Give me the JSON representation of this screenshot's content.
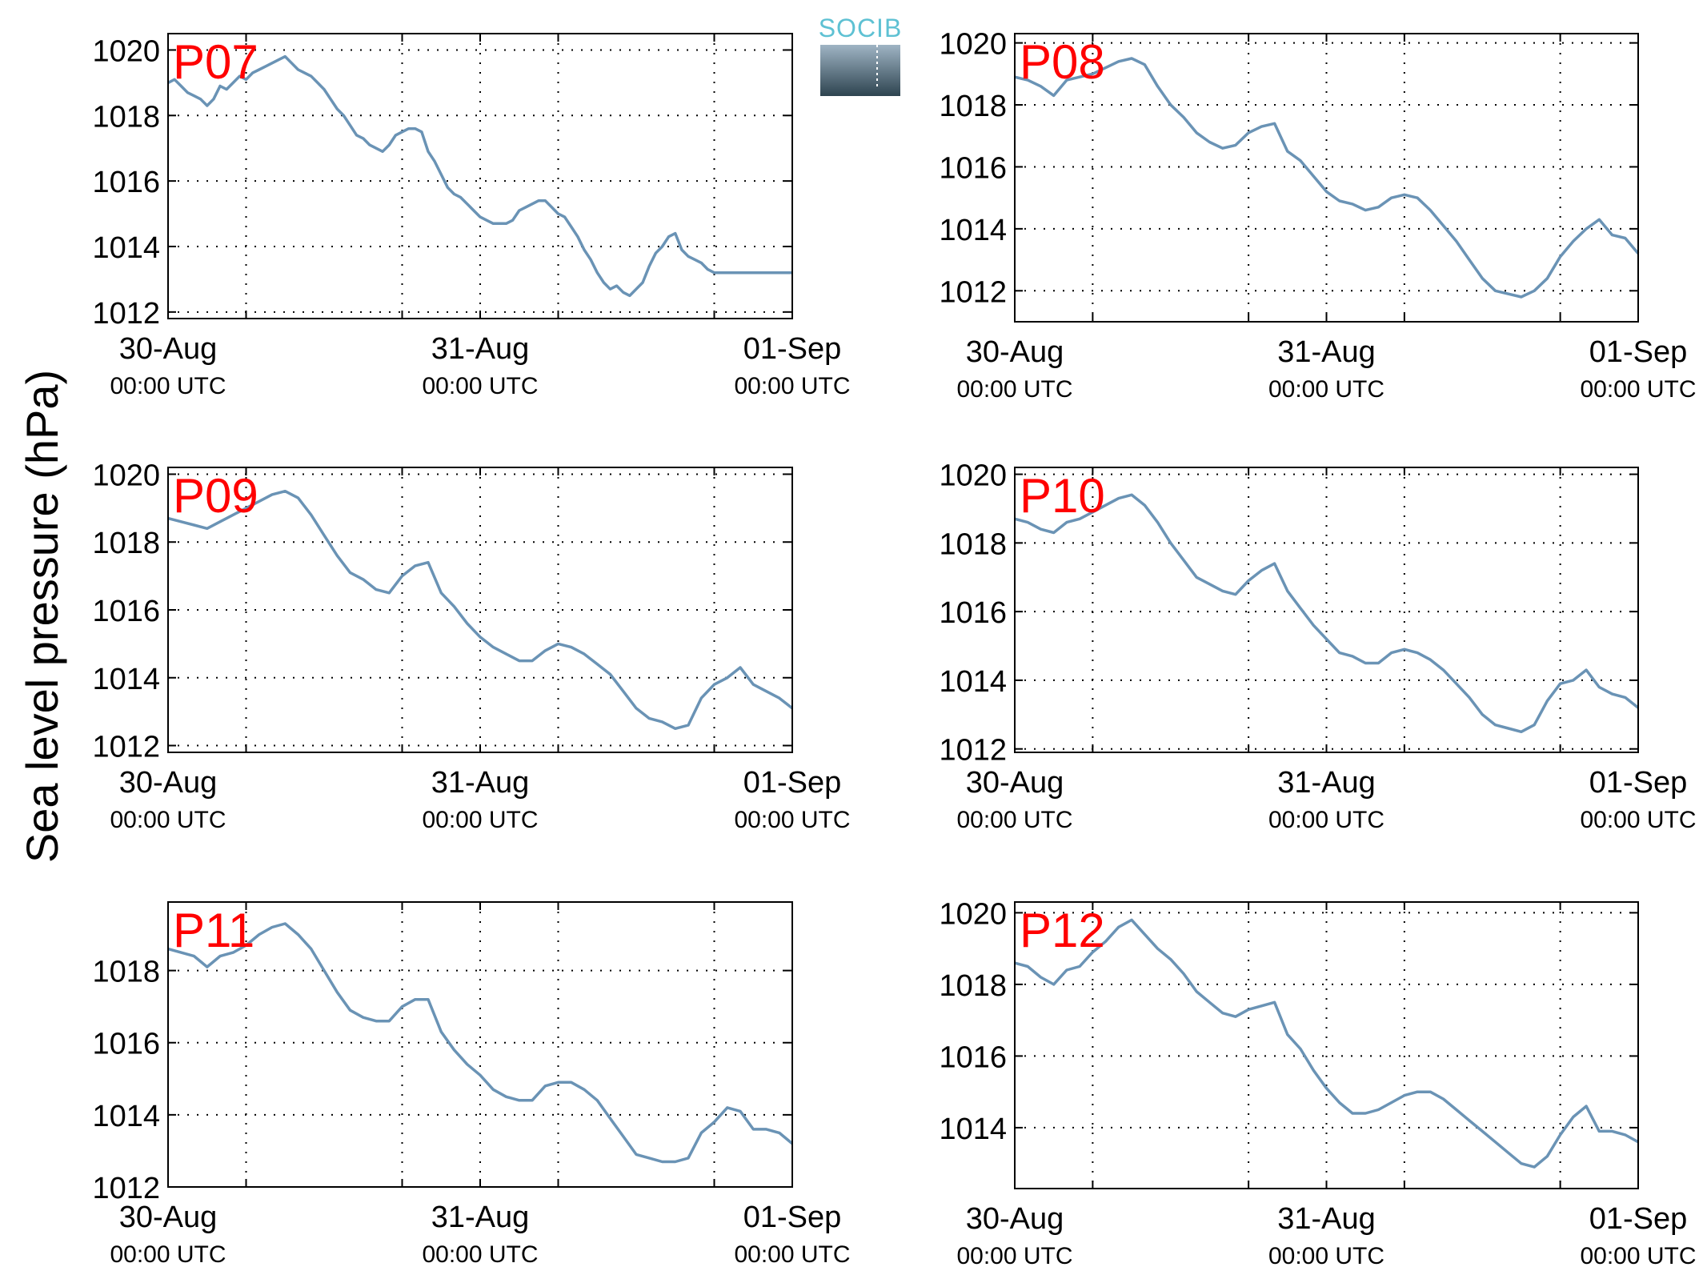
{
  "figure": {
    "ylabel": "Sea level pressure (hPa)",
    "logo_text": "SOCIB",
    "line_color": "#6a93b5",
    "label_color": "#ff0000",
    "grid": true,
    "x_ticks": [
      {
        "x": 0,
        "date": "30-Aug",
        "time": "00:00 UTC"
      },
      {
        "x": 24,
        "date": "31-Aug",
        "time": "00:00 UTC"
      },
      {
        "x": 48,
        "date": "01-Sep",
        "time": "00:00 UTC"
      }
    ],
    "x_minor_grid": [
      6,
      18,
      30,
      42
    ]
  },
  "chart_data": [
    {
      "type": "line",
      "label": "P07",
      "xlim": [
        0,
        48
      ],
      "ylim": [
        1011.8,
        1020.5
      ],
      "yticks": [
        1012,
        1014,
        1016,
        1018,
        1020
      ],
      "x": [
        0,
        0.5,
        1,
        1.5,
        2,
        2.5,
        3,
        3.5,
        4,
        4.5,
        5,
        5.5,
        6,
        6.5,
        7,
        7.5,
        8,
        8.5,
        9,
        9.5,
        10,
        10.5,
        11,
        11.5,
        12,
        12.5,
        13,
        13.5,
        14,
        14.5,
        15,
        15.5,
        16,
        16.5,
        17,
        17.5,
        18,
        18.5,
        19,
        19.5,
        20,
        20.5,
        21,
        21.5,
        22,
        22.5,
        23,
        23.5,
        24,
        24.5,
        25,
        25.5,
        26,
        26.5,
        27,
        27.5,
        28,
        28.5,
        29,
        29.5,
        30,
        30.5,
        31,
        31.5,
        32,
        32.5,
        33,
        33.5,
        34,
        34.5,
        35,
        35.5,
        36,
        36.5,
        37,
        37.5,
        38,
        38.5,
        39,
        39.5,
        40,
        40.5,
        41,
        41.5,
        42,
        42.5,
        43,
        43.5,
        44,
        44.5,
        45,
        45.5,
        46,
        46.5,
        47,
        47.5,
        48
      ],
      "y": [
        1019.0,
        1019.1,
        1018.9,
        1018.7,
        1018.6,
        1018.5,
        1018.3,
        1018.5,
        1018.9,
        1018.8,
        1019.0,
        1019.2,
        1019.1,
        1019.3,
        1019.4,
        1019.5,
        1019.6,
        1019.7,
        1019.8,
        1019.6,
        1019.4,
        1019.3,
        1019.2,
        1019.0,
        1018.8,
        1018.5,
        1018.2,
        1018.0,
        1017.7,
        1017.4,
        1017.3,
        1017.1,
        1017.0,
        1016.9,
        1017.1,
        1017.4,
        1017.5,
        1017.6,
        1017.6,
        1017.5,
        1016.9,
        1016.6,
        1016.2,
        1015.8,
        1015.6,
        1015.5,
        1015.3,
        1015.1,
        1014.9,
        1014.8,
        1014.7,
        1014.7,
        1014.7,
        1014.8,
        1015.1,
        1015.2,
        1015.3,
        1015.4,
        1015.4,
        1015.2,
        1015.0,
        1014.9,
        1014.6,
        1014.3,
        1013.9,
        1013.6,
        1013.2,
        1012.9,
        1012.7,
        1012.8,
        1012.6,
        1012.5,
        1012.7,
        1012.9,
        1013.4,
        1013.8,
        1014.0,
        1014.3,
        1014.4,
        1013.9,
        1013.7,
        1013.6,
        1013.5,
        1013.3,
        1013.2,
        1013.2,
        1013.2,
        1013.2,
        1013.2,
        1013.2,
        1013.2,
        1013.2,
        1013.2,
        1013.2,
        1013.2,
        1013.2,
        1013.2
      ]
    },
    {
      "type": "line",
      "label": "P08",
      "xlim": [
        0,
        48
      ],
      "ylim": [
        1011,
        1020.3
      ],
      "yticks": [
        1012,
        1014,
        1016,
        1018,
        1020
      ],
      "x": [
        0,
        1,
        2,
        3,
        4,
        5,
        6,
        7,
        8,
        9,
        10,
        11,
        12,
        13,
        14,
        15,
        16,
        17,
        18,
        19,
        20,
        21,
        22,
        23,
        24,
        25,
        26,
        27,
        28,
        29,
        30,
        31,
        32,
        33,
        34,
        35,
        36,
        37,
        38,
        39,
        40,
        41,
        42,
        43,
        44,
        45,
        46,
        47,
        48
      ],
      "y": [
        1018.9,
        1018.8,
        1018.6,
        1018.3,
        1018.8,
        1018.9,
        1019.0,
        1019.2,
        1019.4,
        1019.5,
        1019.3,
        1018.6,
        1018.0,
        1017.6,
        1017.1,
        1016.8,
        1016.6,
        1016.7,
        1017.1,
        1017.3,
        1017.4,
        1016.5,
        1016.2,
        1015.7,
        1015.2,
        1014.9,
        1014.8,
        1014.6,
        1014.7,
        1015.0,
        1015.1,
        1015.0,
        1014.6,
        1014.1,
        1013.6,
        1013.0,
        1012.4,
        1012.0,
        1011.9,
        1011.8,
        1012.0,
        1012.4,
        1013.1,
        1013.6,
        1014.0,
        1014.3,
        1013.8,
        1013.7,
        1013.2
      ]
    },
    {
      "type": "line",
      "label": "P09",
      "xlim": [
        0,
        48
      ],
      "ylim": [
        1011.8,
        1020.2
      ],
      "yticks": [
        1012,
        1014,
        1016,
        1018,
        1020
      ],
      "x": [
        0,
        1,
        2,
        3,
        4,
        5,
        6,
        7,
        8,
        9,
        10,
        11,
        12,
        13,
        14,
        15,
        16,
        17,
        18,
        19,
        20,
        21,
        22,
        23,
        24,
        25,
        26,
        27,
        28,
        29,
        30,
        31,
        32,
        33,
        34,
        35,
        36,
        37,
        38,
        39,
        40,
        41,
        42,
        43,
        44,
        45,
        46,
        47,
        48
      ],
      "y": [
        1018.7,
        1018.6,
        1018.5,
        1018.4,
        1018.6,
        1018.8,
        1019.0,
        1019.2,
        1019.4,
        1019.5,
        1019.3,
        1018.8,
        1018.2,
        1017.6,
        1017.1,
        1016.9,
        1016.6,
        1016.5,
        1017.0,
        1017.3,
        1017.4,
        1016.5,
        1016.1,
        1015.6,
        1015.2,
        1014.9,
        1014.7,
        1014.5,
        1014.5,
        1014.8,
        1015.0,
        1014.9,
        1014.7,
        1014.4,
        1014.1,
        1013.6,
        1013.1,
        1012.8,
        1012.7,
        1012.5,
        1012.6,
        1013.4,
        1013.8,
        1014.0,
        1014.3,
        1013.8,
        1013.6,
        1013.4,
        1013.1
      ]
    },
    {
      "type": "line",
      "label": "P10",
      "xlim": [
        0,
        48
      ],
      "ylim": [
        1011.9,
        1020.2
      ],
      "yticks": [
        1012,
        1014,
        1016,
        1018,
        1020
      ],
      "x": [
        0,
        1,
        2,
        3,
        4,
        5,
        6,
        7,
        8,
        9,
        10,
        11,
        12,
        13,
        14,
        15,
        16,
        17,
        18,
        19,
        20,
        21,
        22,
        23,
        24,
        25,
        26,
        27,
        28,
        29,
        30,
        31,
        32,
        33,
        34,
        35,
        36,
        37,
        38,
        39,
        40,
        41,
        42,
        43,
        44,
        45,
        46,
        47,
        48
      ],
      "y": [
        1018.7,
        1018.6,
        1018.4,
        1018.3,
        1018.6,
        1018.7,
        1018.9,
        1019.1,
        1019.3,
        1019.4,
        1019.1,
        1018.6,
        1018.0,
        1017.5,
        1017.0,
        1016.8,
        1016.6,
        1016.5,
        1016.9,
        1017.2,
        1017.4,
        1016.6,
        1016.1,
        1015.6,
        1015.2,
        1014.8,
        1014.7,
        1014.5,
        1014.5,
        1014.8,
        1014.9,
        1014.8,
        1014.6,
        1014.3,
        1013.9,
        1013.5,
        1013.0,
        1012.7,
        1012.6,
        1012.5,
        1012.7,
        1013.4,
        1013.9,
        1014.0,
        1014.3,
        1013.8,
        1013.6,
        1013.5,
        1013.2
      ]
    },
    {
      "type": "line",
      "label": "P11",
      "xlim": [
        0,
        48
      ],
      "ylim": [
        1012,
        1019.9
      ],
      "yticks": [
        1012,
        1014,
        1016,
        1018
      ],
      "x": [
        0,
        1,
        2,
        3,
        4,
        5,
        6,
        7,
        8,
        9,
        10,
        11,
        12,
        13,
        14,
        15,
        16,
        17,
        18,
        19,
        20,
        21,
        22,
        23,
        24,
        25,
        26,
        27,
        28,
        29,
        30,
        31,
        32,
        33,
        34,
        35,
        36,
        37,
        38,
        39,
        40,
        41,
        42,
        43,
        44,
        45,
        46,
        47,
        48
      ],
      "y": [
        1018.6,
        1018.5,
        1018.4,
        1018.1,
        1018.4,
        1018.5,
        1018.7,
        1019.0,
        1019.2,
        1019.3,
        1019.0,
        1018.6,
        1018.0,
        1017.4,
        1016.9,
        1016.7,
        1016.6,
        1016.6,
        1017.0,
        1017.2,
        1017.2,
        1016.3,
        1015.8,
        1015.4,
        1015.1,
        1014.7,
        1014.5,
        1014.4,
        1014.4,
        1014.8,
        1014.9,
        1014.9,
        1014.7,
        1014.4,
        1013.9,
        1013.4,
        1012.9,
        1012.8,
        1012.7,
        1012.7,
        1012.8,
        1013.5,
        1013.8,
        1014.2,
        1014.1,
        1013.6,
        1013.6,
        1013.5,
        1013.2
      ]
    },
    {
      "type": "line",
      "label": "P12",
      "xlim": [
        0,
        48
      ],
      "ylim": [
        1012.3,
        1020.3
      ],
      "yticks": [
        1014,
        1016,
        1018,
        1020
      ],
      "x": [
        0,
        1,
        2,
        3,
        4,
        5,
        6,
        7,
        8,
        9,
        10,
        11,
        12,
        13,
        14,
        15,
        16,
        17,
        18,
        19,
        20,
        21,
        22,
        23,
        24,
        25,
        26,
        27,
        28,
        29,
        30,
        31,
        32,
        33,
        34,
        35,
        36,
        37,
        38,
        39,
        40,
        41,
        42,
        43,
        44,
        45,
        46,
        47,
        48
      ],
      "y": [
        1018.6,
        1018.5,
        1018.2,
        1018.0,
        1018.4,
        1018.5,
        1018.9,
        1019.2,
        1019.6,
        1019.8,
        1019.4,
        1019.0,
        1018.7,
        1018.3,
        1017.8,
        1017.5,
        1017.2,
        1017.1,
        1017.3,
        1017.4,
        1017.5,
        1016.6,
        1016.2,
        1015.6,
        1015.1,
        1014.7,
        1014.4,
        1014.4,
        1014.5,
        1014.7,
        1014.9,
        1015.0,
        1015.0,
        1014.8,
        1014.5,
        1014.2,
        1013.9,
        1013.6,
        1013.3,
        1013.0,
        1012.9,
        1013.2,
        1013.8,
        1014.3,
        1014.6,
        1013.9,
        1013.9,
        1013.8,
        1013.6
      ]
    }
  ]
}
